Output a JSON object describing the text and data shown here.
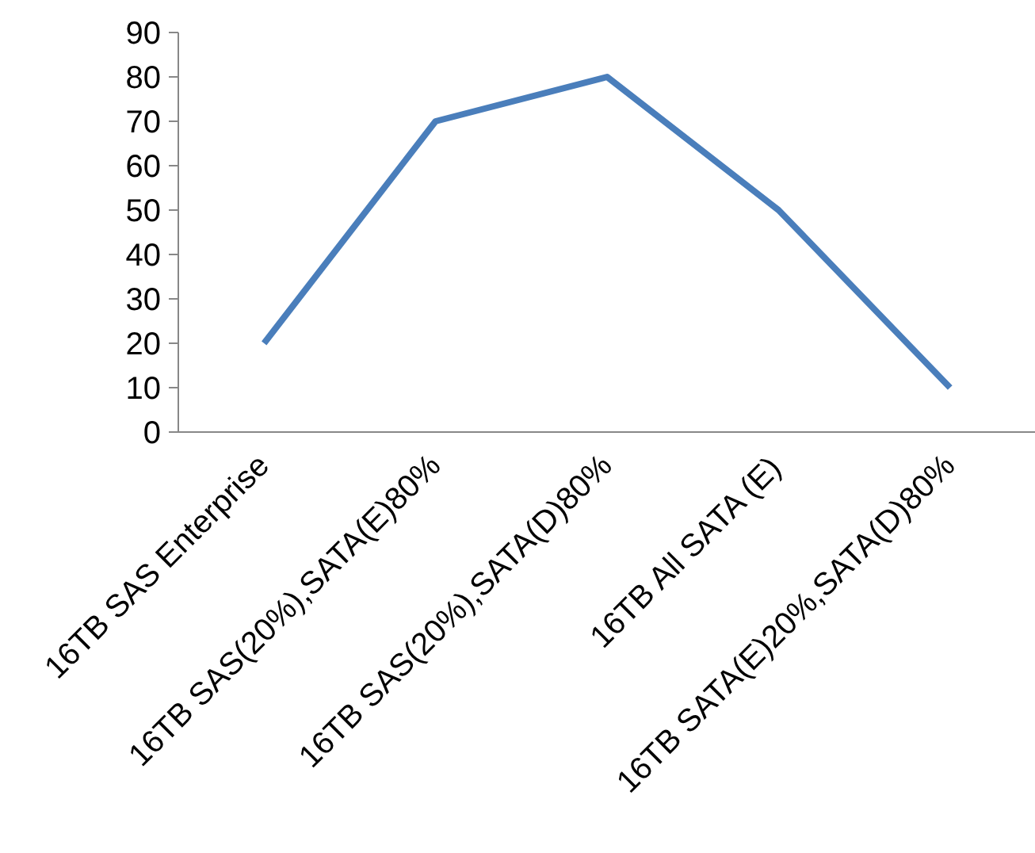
{
  "chart_data": {
    "type": "line",
    "categories": [
      "16TB SAS Enterprise",
      "16TB SAS(20%),SATA(E)80%",
      "16TB SAS(20%),SATA(D)80%",
      "16TB All SATA (E)",
      "16TB SATA(E)20%,SATA(D)80%"
    ],
    "series": [
      {
        "color": "#4a7ebb",
        "values": [
          20,
          70,
          80,
          50,
          10
        ]
      }
    ],
    "ylim": [
      0,
      90
    ],
    "yticks": [
      0,
      10,
      20,
      30,
      40,
      50,
      60,
      70,
      80,
      90
    ],
    "grid": false,
    "marker": "none",
    "line_style": "solid"
  }
}
